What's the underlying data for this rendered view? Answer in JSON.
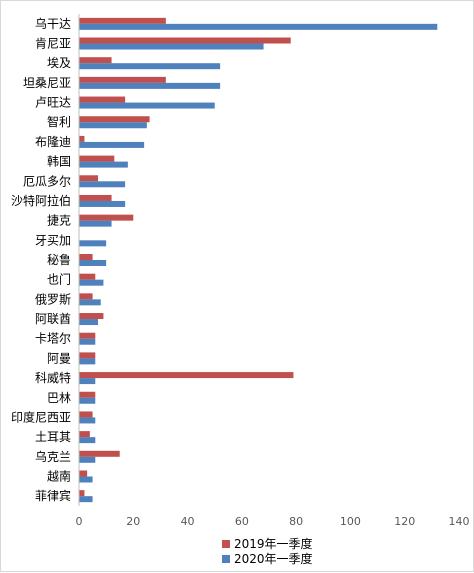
{
  "chart_data": {
    "type": "bar",
    "orientation": "horizontal",
    "categories": [
      "乌干达",
      "肯尼亚",
      "埃及",
      "坦桑尼亚",
      "卢旺达",
      "智利",
      "布隆迪",
      "韩国",
      "厄瓜多尔",
      "沙特阿拉伯",
      "捷克",
      "牙买加",
      "秘鲁",
      "也门",
      "俄罗斯",
      "阿联酋",
      "卡塔尔",
      "阿曼",
      "科威特",
      "巴林",
      "印度尼西亚",
      "土耳其",
      "乌克兰",
      "越南",
      "菲律宾"
    ],
    "series": [
      {
        "name": "2019年一季度",
        "color": "#c0504d",
        "values": [
          32,
          78,
          12,
          32,
          17,
          26,
          2,
          13,
          7,
          12,
          20,
          0,
          5,
          6,
          5,
          9,
          6,
          6,
          79,
          6,
          5,
          4,
          15,
          3,
          2
        ]
      },
      {
        "name": "2020年一季度",
        "color": "#4f81bd",
        "values": [
          132,
          68,
          52,
          52,
          50,
          25,
          24,
          18,
          17,
          17,
          12,
          10,
          10,
          9,
          8,
          7,
          6,
          6,
          6,
          6,
          6,
          6,
          6,
          5,
          5
        ]
      }
    ],
    "xlim": [
      0,
      140
    ],
    "xticks": [
      0,
      20,
      40,
      60,
      80,
      100,
      120,
      140
    ],
    "xtick_labels": [
      "0",
      "20",
      "40",
      "60",
      "80",
      "100",
      "120",
      "140"
    ],
    "grid": false,
    "legend_position": "bottom"
  }
}
